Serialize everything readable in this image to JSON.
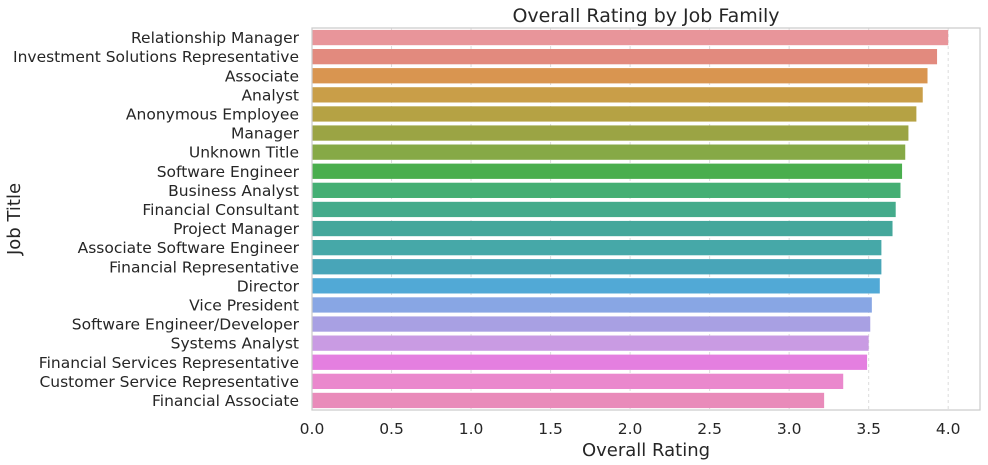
{
  "chart_data": {
    "type": "bar",
    "orientation": "horizontal",
    "title": "Overall Rating by Job Family",
    "xlabel": "Overall Rating",
    "ylabel": "Job Title",
    "xlim": [
      0,
      4.2
    ],
    "xticks": [
      "0.0",
      "0.5",
      "1.0",
      "1.5",
      "2.0",
      "2.5",
      "3.0",
      "3.5",
      "4.0"
    ],
    "grid": true,
    "categories": [
      "Relationship Manager",
      "Investment Solutions Representative",
      "Associate",
      "Analyst",
      "Anonymous Employee",
      "Manager",
      "Unknown Title",
      "Software Engineer",
      "Business Analyst",
      "Financial Consultant",
      "Project Manager",
      "Associate Software Engineer",
      "Financial Representative",
      "Director",
      "Vice President",
      "Software Engineer/Developer",
      "Systems Analyst",
      "Financial Services Representative",
      "Customer Service Representative",
      "Financial Associate"
    ],
    "values": [
      4.0,
      3.93,
      3.87,
      3.84,
      3.8,
      3.75,
      3.73,
      3.71,
      3.7,
      3.67,
      3.65,
      3.58,
      3.58,
      3.57,
      3.52,
      3.51,
      3.5,
      3.49,
      3.34,
      3.22
    ],
    "colors": [
      "#e8959a",
      "#e28a7e",
      "#d99550",
      "#c99e48",
      "#b5a244",
      "#9ba444",
      "#86a946",
      "#4aae4e",
      "#45af74",
      "#44ab8b",
      "#44a79b",
      "#46a8a8",
      "#48a5b8",
      "#51a9d6",
      "#88a6e4",
      "#a8a0e3",
      "#c99be3",
      "#e47fe0",
      "#ea88cd",
      "#e98bba"
    ]
  }
}
